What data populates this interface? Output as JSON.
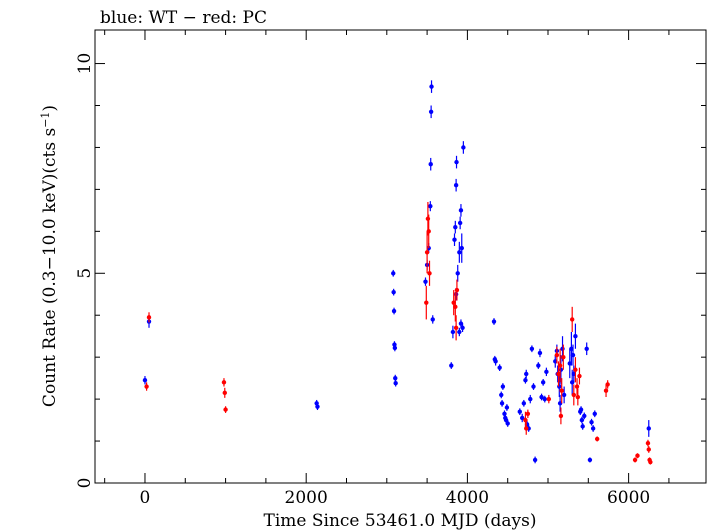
{
  "chart_data": {
    "type": "scatter",
    "title": "blue: WT − red: PC",
    "xlabel": "Time Since 53461.0 MJD (days)",
    "ylabel_main": "Count Rate (0.3−10.0 keV)(cts s",
    "ylabel_sup": "−1",
    "ylabel_close": ")",
    "xlim": [
      -620,
      6960
    ],
    "ylim": [
      0,
      10.8
    ],
    "x_ticks": [
      0,
      2000,
      4000,
      6000
    ],
    "x_tick_labels": [
      "0",
      "2000",
      "4000",
      "6000"
    ],
    "y_ticks": [
      0,
      5,
      10
    ],
    "y_tick_labels": [
      "0",
      "5",
      "10"
    ],
    "grid": false,
    "legend": "none",
    "series": [
      {
        "name": "WT",
        "color": "#0000ff",
        "points": [
          [
            0,
            2.45,
            0.1
          ],
          [
            50,
            3.85,
            0.15
          ],
          [
            2130,
            1.9,
            0.08
          ],
          [
            2140,
            1.82,
            0.08
          ],
          [
            3080,
            5.0,
            0.08
          ],
          [
            3085,
            4.55,
            0.08
          ],
          [
            3090,
            4.1,
            0.08
          ],
          [
            3095,
            3.3,
            0.08
          ],
          [
            3100,
            3.22,
            0.08
          ],
          [
            3105,
            2.5,
            0.08
          ],
          [
            3110,
            2.38,
            0.08
          ],
          [
            3480,
            4.8,
            0.1
          ],
          [
            3500,
            5.2,
            0.12
          ],
          [
            3520,
            5.6,
            0.12
          ],
          [
            3540,
            6.6,
            0.12
          ],
          [
            3545,
            7.6,
            0.15
          ],
          [
            3550,
            8.85,
            0.15
          ],
          [
            3555,
            9.45,
            0.15
          ],
          [
            3570,
            3.9,
            0.1
          ],
          [
            3800,
            2.8,
            0.08
          ],
          [
            3820,
            3.6,
            0.15
          ],
          [
            3840,
            5.8,
            0.15
          ],
          [
            3850,
            6.1,
            0.15
          ],
          [
            3860,
            7.1,
            0.15
          ],
          [
            3865,
            7.65,
            0.15
          ],
          [
            3880,
            5.0,
            0.2
          ],
          [
            3900,
            5.5,
            0.25
          ],
          [
            3910,
            6.2,
            0.15
          ],
          [
            3920,
            6.5,
            0.15
          ],
          [
            3930,
            5.6,
            0.35
          ],
          [
            3950,
            8.0,
            0.15
          ],
          [
            3860,
            4.5,
            0.15
          ],
          [
            3900,
            3.6,
            0.1
          ],
          [
            3920,
            3.8,
            0.1
          ],
          [
            3940,
            3.7,
            0.1
          ],
          [
            4330,
            3.85,
            0.08
          ],
          [
            4340,
            2.95,
            0.08
          ],
          [
            4350,
            2.9,
            0.1
          ],
          [
            4400,
            2.75,
            0.08
          ],
          [
            4420,
            2.1,
            0.08
          ],
          [
            4430,
            1.9,
            0.08
          ],
          [
            4440,
            2.3,
            0.08
          ],
          [
            4460,
            1.65,
            0.08
          ],
          [
            4470,
            1.55,
            0.08
          ],
          [
            4480,
            1.5,
            0.08
          ],
          [
            4490,
            1.8,
            0.08
          ],
          [
            4500,
            1.42,
            0.08
          ],
          [
            4650,
            1.7,
            0.08
          ],
          [
            4680,
            1.55,
            0.1
          ],
          [
            4700,
            1.9,
            0.08
          ],
          [
            4720,
            2.45,
            0.08
          ],
          [
            4730,
            2.6,
            0.1
          ],
          [
            4740,
            1.4,
            0.08
          ],
          [
            4760,
            1.3,
            0.08
          ],
          [
            4780,
            2.0,
            0.1
          ],
          [
            4800,
            3.2,
            0.08
          ],
          [
            4820,
            2.3,
            0.08
          ],
          [
            4840,
            0.55,
            0.08
          ],
          [
            4880,
            2.8,
            0.08
          ],
          [
            4900,
            3.1,
            0.1
          ],
          [
            4920,
            2.05,
            0.08
          ],
          [
            4940,
            2.4,
            0.08
          ],
          [
            4960,
            2.0,
            0.08
          ],
          [
            4980,
            2.65,
            0.1
          ],
          [
            5090,
            2.9,
            0.15
          ],
          [
            5110,
            3.15,
            0.15
          ],
          [
            5120,
            2.6,
            0.2
          ],
          [
            5140,
            2.3,
            0.25
          ],
          [
            5150,
            1.9,
            0.2
          ],
          [
            5160,
            2.7,
            0.35
          ],
          [
            5180,
            3.2,
            0.3
          ],
          [
            5200,
            2.1,
            0.2
          ],
          [
            5270,
            2.85,
            0.35
          ],
          [
            5290,
            3.2,
            0.4
          ],
          [
            5300,
            2.4,
            0.3
          ],
          [
            5310,
            3.05,
            0.25
          ],
          [
            5320,
            2.6,
            0.2
          ],
          [
            5340,
            3.5,
            0.3
          ],
          [
            5400,
            1.7,
            0.08
          ],
          [
            5410,
            1.75,
            0.08
          ],
          [
            5420,
            1.5,
            0.08
          ],
          [
            5430,
            1.35,
            0.08
          ],
          [
            5450,
            1.6,
            0.08
          ],
          [
            5480,
            3.2,
            0.15
          ],
          [
            5520,
            0.55,
            0.06
          ],
          [
            5540,
            1.45,
            0.08
          ],
          [
            5560,
            1.3,
            0.08
          ],
          [
            5580,
            1.65,
            0.08
          ],
          [
            6250,
            1.3,
            0.2
          ]
        ]
      },
      {
        "name": "PC",
        "color": "#ff0000",
        "points": [
          [
            20,
            2.3,
            0.1
          ],
          [
            50,
            3.95,
            0.12
          ],
          [
            980,
            2.4,
            0.1
          ],
          [
            990,
            2.15,
            0.12
          ],
          [
            1000,
            1.75,
            0.08
          ],
          [
            3490,
            4.3,
            0.4
          ],
          [
            3500,
            5.5,
            0.5
          ],
          [
            3510,
            6.3,
            0.4
          ],
          [
            3520,
            6.0,
            0.4
          ],
          [
            3530,
            5.0,
            0.3
          ],
          [
            3830,
            4.3,
            0.3
          ],
          [
            3850,
            4.2,
            0.35
          ],
          [
            3860,
            3.7,
            0.3
          ],
          [
            3870,
            4.6,
            0.25
          ],
          [
            4720,
            1.5,
            0.2
          ],
          [
            4730,
            1.3,
            0.15
          ],
          [
            4750,
            1.65,
            0.1
          ],
          [
            5010,
            2.0,
            0.1
          ],
          [
            5110,
            3.05,
            0.2
          ],
          [
            5130,
            2.6,
            0.3
          ],
          [
            5150,
            2.8,
            0.4
          ],
          [
            5160,
            1.6,
            0.2
          ],
          [
            5170,
            2.2,
            0.3
          ],
          [
            5190,
            3.0,
            0.3
          ],
          [
            5300,
            3.9,
            0.3
          ],
          [
            5320,
            2.1,
            0.25
          ],
          [
            5340,
            2.7,
            0.3
          ],
          [
            5360,
            2.3,
            0.2
          ],
          [
            5370,
            2.05,
            0.2
          ],
          [
            5390,
            2.55,
            0.2
          ],
          [
            5610,
            1.05,
            0.06
          ],
          [
            5720,
            2.2,
            0.15
          ],
          [
            5740,
            2.35,
            0.1
          ],
          [
            6080,
            0.55,
            0.06
          ],
          [
            6110,
            0.65,
            0.06
          ],
          [
            6240,
            0.95,
            0.08
          ],
          [
            6250,
            0.8,
            0.08
          ],
          [
            6260,
            0.55,
            0.06
          ],
          [
            6270,
            0.5,
            0.06
          ]
        ]
      }
    ]
  }
}
